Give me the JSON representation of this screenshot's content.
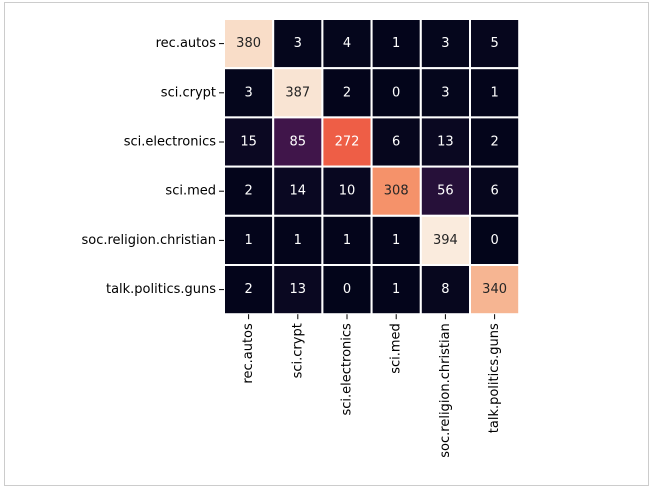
{
  "chart_data": {
    "type": "heatmap",
    "title": "",
    "xlabel": "",
    "ylabel": "",
    "rows": [
      "rec.autos",
      "sci.crypt",
      "sci.electronics",
      "sci.med",
      "soc.religion.christian",
      "talk.politics.guns"
    ],
    "columns": [
      "rec.autos",
      "sci.crypt",
      "sci.electronics",
      "sci.med",
      "soc.religion.christian",
      "talk.politics.guns"
    ],
    "values": [
      [
        380,
        3,
        4,
        1,
        3,
        5
      ],
      [
        3,
        387,
        2,
        0,
        3,
        1
      ],
      [
        15,
        85,
        272,
        6,
        13,
        2
      ],
      [
        2,
        14,
        10,
        308,
        56,
        6
      ],
      [
        1,
        1,
        1,
        1,
        394,
        0
      ],
      [
        2,
        13,
        0,
        1,
        8,
        340
      ]
    ],
    "value_range": [
      0,
      394
    ],
    "colormap": "rocket",
    "cell_border_color": "#ffffff",
    "colorbar": false,
    "annotations": true
  }
}
